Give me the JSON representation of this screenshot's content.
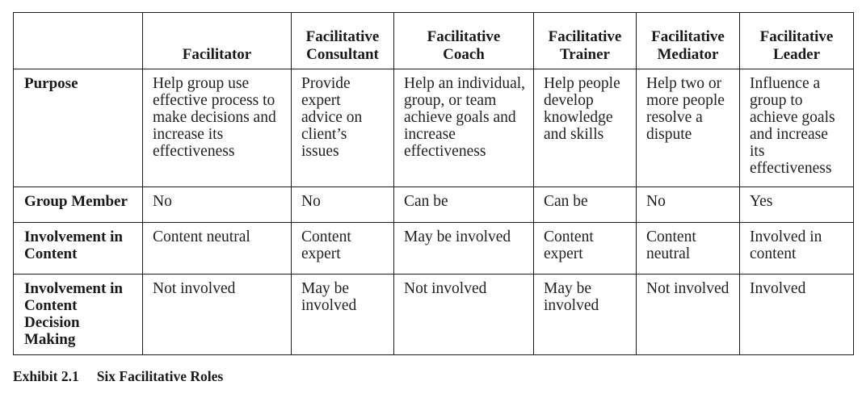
{
  "table": {
    "columns": [
      "",
      "Facilitator",
      "Facilitative\nConsultant",
      "Facilitative\nCoach",
      "Facilitative\nTrainer",
      "Facilitative\nMediator",
      "Facilitative\nLeader"
    ],
    "rows": [
      {
        "label": "Purpose",
        "cells": [
          "Help group use effective process to make decisions and increase its effectiveness",
          "Provide expert advice on client’s issues",
          "Help an individual, group, or team achieve goals and increase effectiveness",
          "Help people develop knowledge and skills",
          "Help two or more people resolve a dispute",
          "Influence a group to achieve goals and increase its effectiveness"
        ]
      },
      {
        "label": "Group Member",
        "cells": [
          "No",
          "No",
          "Can be",
          "Can be",
          "No",
          "Yes"
        ]
      },
      {
        "label": "Involvement in Content",
        "cells": [
          "Content neutral",
          "Content expert",
          "May be involved",
          "Content expert",
          "Content neutral",
          "Involved in content"
        ]
      },
      {
        "label": "Involvement in Content Decision Making",
        "cells": [
          "Not involved",
          "May be involved",
          "Not involved",
          "May be involved",
          "Not involved",
          "Involved"
        ]
      }
    ]
  },
  "caption": {
    "number": "Exhibit 2.1",
    "title": "Six Facilitative Roles"
  }
}
